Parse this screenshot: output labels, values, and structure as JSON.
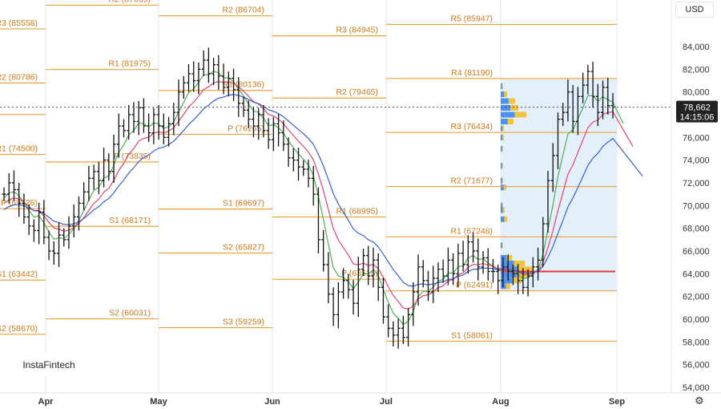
{
  "toolbar": {
    "currency": "USD",
    "brand": "InstaFintech",
    "settings_icon": "gear-icon"
  },
  "colors": {
    "pivot": "#f0a040",
    "pivot_label": "#c8791a",
    "ema_fast": "#4caf50",
    "ema_mid": "#e0446a",
    "ema_slow": "#3a5fcd",
    "candle": "#111111",
    "last_price_box": "#222222",
    "volume_profile_main": "#2f80ed",
    "volume_profile_high": "#f5b400",
    "volume_profile_bg": "#e3f0fb",
    "poc_line": "#e53935"
  },
  "chart_data": {
    "type": "candlestick",
    "y_axis_ticks": [
      "84,000",
      "82,000",
      "80,000",
      "78,000",
      "76,000",
      "74,000",
      "72,000",
      "70,000",
      "68,000",
      "66,000",
      "64,000",
      "62,000",
      "60,000",
      "58,000",
      "56,000",
      "54,000"
    ],
    "ylim": [
      53500,
      89500
    ],
    "x_axis_ticks": [
      "Apr",
      "May",
      "Jun",
      "Jul",
      "Aug",
      "Sep"
    ],
    "last_price": {
      "value": "78,662",
      "countdown": "14:15:06"
    },
    "pivot_periods": [
      {
        "period": "Mar",
        "levels": [
          {
            "label": "R3 (85558)",
            "value": 85558
          },
          {
            "label": "R2 (80786)",
            "value": 80786
          },
          {
            "label": "P (78014)",
            "value": 78014,
            "label_visible": false
          },
          {
            "label": "R1 (74500)",
            "value": 74500
          },
          {
            "label": "P (69728)",
            "value": 69728
          },
          {
            "label": "S1 (63442)",
            "value": 63442
          },
          {
            "label": "S2 (58670)",
            "value": 58670
          }
        ]
      },
      {
        "period": "Apr",
        "levels": [
          {
            "label": "R2 (87639)",
            "value": 87639
          },
          {
            "label": "R1 (81975)",
            "value": 81975
          },
          {
            "label": "P (73835)",
            "value": 73835
          },
          {
            "label": "S1 (68171)",
            "value": 68171
          },
          {
            "label": "S2 (60031)",
            "value": 60031
          }
        ]
      },
      {
        "period": "May",
        "levels": [
          {
            "label": "R2 (86704)",
            "value": 86704
          },
          {
            "label": "R1 (80136)",
            "value": 80136
          },
          {
            "label": "P (76265)",
            "value": 76265
          },
          {
            "label": "S1 (69697)",
            "value": 69697
          },
          {
            "label": "S2 (65827)",
            "value": 65827
          },
          {
            "label": "S3 (59259)",
            "value": 59259
          }
        ]
      },
      {
        "period": "Jun",
        "levels": [
          {
            "label": "R3 (84945)",
            "value": 84945
          },
          {
            "label": "R2 (79465)",
            "value": 79465
          },
          {
            "label": "R1 (68995)",
            "value": 68995
          },
          {
            "label": "P (63515)",
            "value": 63515
          }
        ]
      },
      {
        "period": "Jul",
        "levels": [
          {
            "label": "R5 (85947)",
            "value": 85947
          },
          {
            "label": "R4 (81190)",
            "value": 81190
          },
          {
            "label": "R3 (76434)",
            "value": 76434
          },
          {
            "label": "R2 (71677)",
            "value": 71677
          },
          {
            "label": "R1 (67248)",
            "value": 67248
          },
          {
            "label": "P (62491)",
            "value": 62491
          },
          {
            "label": "S1 (58061)",
            "value": 58061
          }
        ]
      }
    ],
    "daily_closes": [
      71000,
      72000,
      71400,
      70200,
      69000,
      68200,
      67800,
      69400,
      67200,
      66000,
      65800,
      67400,
      67000,
      68200,
      69000,
      70200,
      71200,
      72400,
      73000,
      72200,
      74000,
      73000,
      75400,
      77000,
      76600,
      78000,
      77400,
      78600,
      77000,
      76400,
      78000,
      77000,
      76000,
      77200,
      78200,
      80000,
      80800,
      81600,
      81000,
      82000,
      82800,
      81600,
      82400,
      81400,
      80400,
      81200,
      80200,
      79000,
      78400,
      77600,
      77000,
      78000,
      76600,
      75800,
      77200,
      76400,
      75400,
      74200,
      74000,
      73400,
      73200,
      72400,
      71000,
      67000,
      64800,
      62200,
      60400,
      62400,
      63400,
      62600,
      61400,
      64400,
      65600,
      63800,
      65200,
      62800,
      60200,
      59200,
      58600,
      59200,
      58400,
      60400,
      62400,
      64600,
      63400,
      62400,
      63600,
      64400,
      63800,
      65200,
      64000,
      65800,
      64800,
      66800,
      66000,
      64600,
      65400,
      64200,
      64200,
      63400,
      64600,
      64200,
      64000,
      63400,
      62800,
      63800,
      64600,
      65200,
      68400,
      72200,
      74400,
      77600,
      78200,
      80000,
      77400,
      79600,
      80600,
      81800,
      79600,
      78200,
      80400,
      78800,
      78662
    ]
  }
}
